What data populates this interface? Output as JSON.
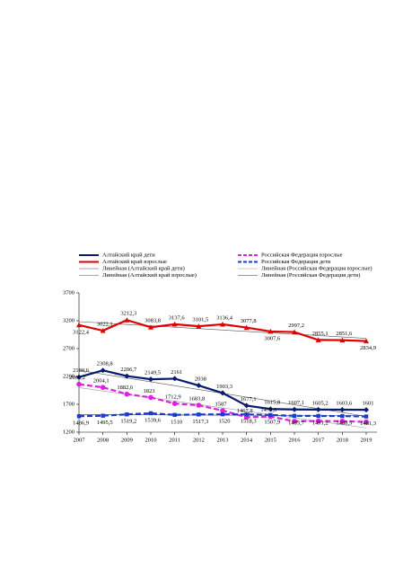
{
  "chart_data": {
    "type": "line",
    "x": [
      2007,
      2008,
      2009,
      2010,
      2011,
      2012,
      2013,
      2014,
      2015,
      2016,
      2017,
      2018,
      2019
    ],
    "xlim": [
      2007,
      2019
    ],
    "ylim": [
      1200,
      3700
    ],
    "yticks": [
      1200,
      1700,
      2200,
      2700,
      3200,
      3700
    ],
    "series": [
      {
        "name": "Алтайский край дети",
        "color": "#0a1a6e",
        "marker": "diamond",
        "dashed": false,
        "trend_name": "Линейная (Алтайский край дети)",
        "trend_color": "#555555",
        "values": [
          2188.6,
          2308.8,
          2206.7,
          2149.5,
          2161,
          2038,
          1903.3,
          1677.1,
          1615.8,
          1607.1,
          1605.2,
          1603.6,
          1601
        ],
        "value_labels": [
          "2188,6",
          "2308,8",
          "2206,7",
          "2149,5",
          "2161",
          "2038",
          "1903,3",
          "1677,1",
          "1615,8",
          "1607,1",
          "1605,2",
          "1603,6",
          "1601"
        ]
      },
      {
        "name": "Алтайский край взрослые",
        "color": "#e00000",
        "marker": "triangle",
        "dashed": false,
        "trend_name": "Линейная (Алтайский край взрослые)",
        "trend_color": "#555555",
        "values": [
          3122.4,
          3022.1,
          3212.3,
          3083.8,
          3137.6,
          3101.5,
          3136.4,
          3077.8,
          3007.6,
          2997.2,
          2855.1,
          2851.6,
          2834.9
        ],
        "value_labels": [
          "3122,4",
          "3022,1",
          "3212,3",
          "3083,8",
          "3137,6",
          "3101,5",
          "3136,4",
          "3077,8",
          "3007,6",
          "2997,2",
          "2855,1",
          "2851,6",
          "2834,9"
        ]
      },
      {
        "name": "Российская Федерация взрослые",
        "color": "#e020e0",
        "marker": "circle",
        "dashed": true,
        "trend_name": "Линейная (Российская Федерация взрослые)",
        "trend_color": "#999999",
        "values": [
          2060.2,
          2004.1,
          1882.6,
          1823,
          1712.9,
          1683.8,
          1587,
          1467.8,
          1479.6,
          1395.2,
          1400,
          1397,
          1384
        ],
        "value_labels": [
          "2060,2",
          "2004,1",
          "1882,6",
          "1823",
          "1712,9",
          "1683,8",
          "1587",
          "1467,8",
          "1479,6",
          null,
          null,
          null,
          null
        ]
      },
      {
        "name": "Российская Федерация дети",
        "color": "#1a3ad0",
        "marker": "square",
        "dashed": true,
        "trend_name": "Линейная (Российская Федерация дети)",
        "trend_color": "#333333",
        "values": [
          1486.9,
          1495.5,
          1519.2,
          1539.6,
          1510,
          1517.3,
          1520,
          1518.3,
          1507.9,
          1493.7,
          1491.2,
          1488.5,
          1481.3
        ],
        "value_labels": [
          "1486,9",
          "1495,5",
          "1519,2",
          "1539,6",
          "1510",
          "1517,3",
          "1520",
          "1518,3",
          "1507,9",
          "1493,7",
          "1491,2",
          "1488,5",
          "1481,3"
        ]
      }
    ]
  }
}
